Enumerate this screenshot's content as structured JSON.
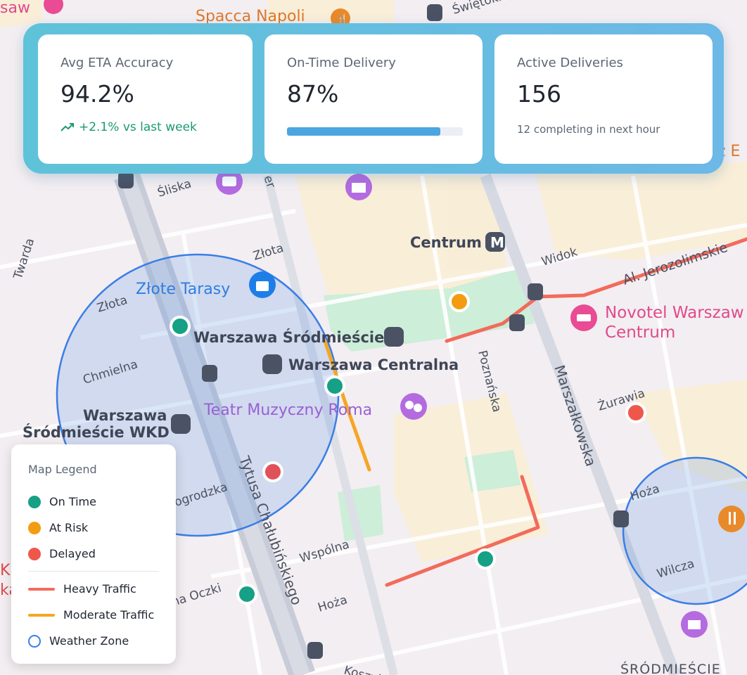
{
  "kpis": [
    {
      "title": "Avg ETA Accuracy",
      "value": "94.2%",
      "trend": "+2.1% vs last week"
    },
    {
      "title": "On-Time Delivery",
      "value": "87%",
      "progress_percent": 87
    },
    {
      "title": "Active Deliveries",
      "value": "156",
      "subtext": "12 completing in next hour"
    }
  ],
  "legend": {
    "title": "Map Legend",
    "on_time": "On Time",
    "at_risk": "At Risk",
    "delayed": "Delayed",
    "heavy_traffic": "Heavy Traffic",
    "moderate_traffic": "Moderate Traffic",
    "weather_zone": "Weather Zone"
  },
  "colors": {
    "on_time": "#16a085",
    "at_risk": "#f39c12",
    "delayed": "#f0574b",
    "heavy_traffic": "#f26b5b",
    "moderate_traffic": "#f5a623",
    "weather_zone": "#3a7ee6",
    "accent": "#4aa5e0"
  },
  "map": {
    "streets": {
      "swietokrzyska": "Świętokrzys",
      "sliska": "Śliska",
      "twarda": "Twarda",
      "zlota_1": "Złota",
      "zlota_2": "Złota",
      "chmielna": "Chmielna",
      "widok": "Widok",
      "jerozolimskie": "Al. Jerozolimskie",
      "poznanska": "Poznańska",
      "marszalkowska": "Marszałkowska",
      "zurawia": "Żurawia",
      "tytusa": "Tytusa Chałubińskiego",
      "nowogrodzka": "ogrodzka",
      "wspolna": "Wspólna",
      "hoza_1": "Hoża",
      "hoza_2": "Hoża",
      "wilcza": "Wilcza",
      "oczki": "na Oczki",
      "koszykowa": "Koszykowa",
      "emilii": "er",
      "srodmiescie": "ŚRÓDMIEŚCIE"
    },
    "places": {
      "spacca": "Spacca Napoli",
      "saw": "saw",
      "centrum": "Centrum",
      "zlote_tarasy": "Złote Tarasy",
      "wsr": "Warszawa Śródmieście",
      "wcentralna": "Warszawa Centralna",
      "teatr": "Teatr Muzyczny Roma",
      "wkd_1": "Warszawa",
      "wkd_2": "Śródmieście WKD",
      "novotel_1": "Novotel Warszaw",
      "novotel_2": "Centrum",
      "edge_e": "z E",
      "edge_kl_1": "Kl",
      "edge_kl_2": "ka",
      "metro_letter": "M"
    }
  }
}
